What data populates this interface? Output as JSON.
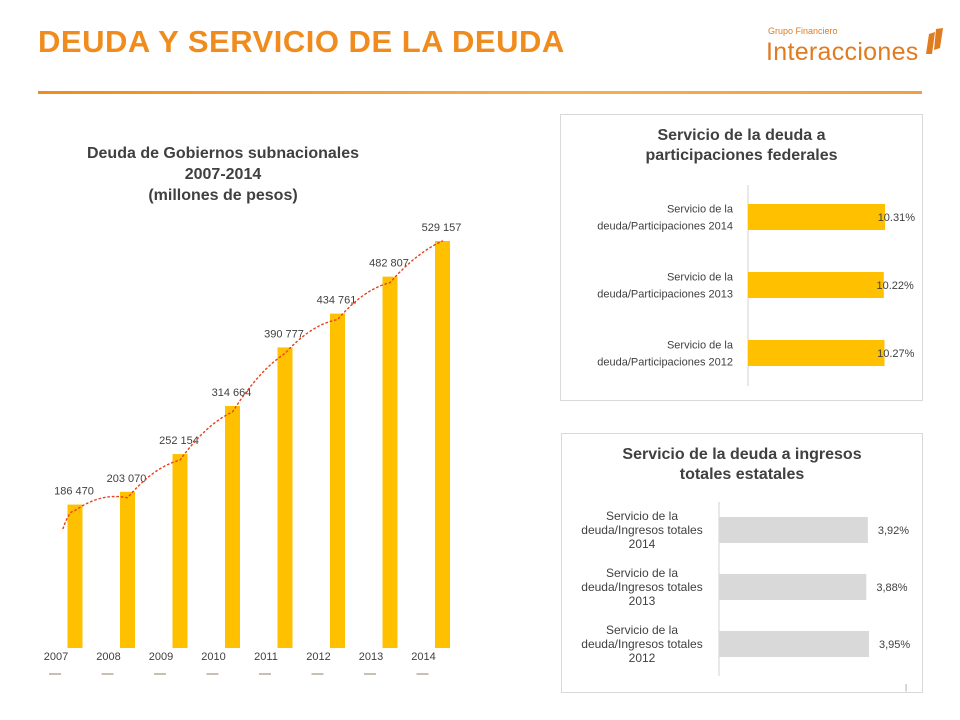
{
  "header": {
    "title": "DEUDA Y SERVICIO DE LA DEUDA",
    "logo_small": "Grupo Financiero",
    "logo_big": "Interacciones"
  },
  "chart_data": [
    {
      "type": "bar",
      "title": [
        "Deuda de Gobiernos subnacionales",
        "2007-2014",
        "(millones de pesos)"
      ],
      "categories": [
        "2007",
        "2008",
        "2009",
        "2010",
        "2011",
        "2012",
        "2013",
        "2014"
      ],
      "values": [
        186470,
        203070,
        252154,
        314664,
        390777,
        434761,
        482807,
        529157
      ],
      "value_labels": [
        "186 470",
        "203 070",
        "252 154",
        "314 664",
        "390 777",
        "434 761",
        "482 807",
        "529 157"
      ],
      "trendline": "polynomial (dotted red)",
      "color": "#ffc000",
      "trend_color": "#e8401c"
    },
    {
      "type": "bar",
      "orientation": "horizontal",
      "title": [
        "Servicio de la deuda a",
        "participaciones federales"
      ],
      "categories": [
        [
          "Servicio de la",
          "deuda/Participaciones 2014"
        ],
        [
          "Servicio de la",
          "deuda/Participaciones 2013"
        ],
        [
          "Servicio de la",
          "deuda/Participaciones 2012"
        ]
      ],
      "values": [
        10.31,
        10.22,
        10.27
      ],
      "value_labels": [
        "10.31%",
        "10.22%",
        "10.27%"
      ],
      "color": "#ffc000"
    },
    {
      "type": "bar",
      "orientation": "horizontal",
      "title": [
        "Servicio de la deuda a ingresos",
        "totales estatales"
      ],
      "categories": [
        [
          "Servicio de la",
          "deuda/Ingresos totales",
          "2014"
        ],
        [
          "Servicio de la",
          "deuda/Ingresos totales",
          "2013"
        ],
        [
          "Servicio de la",
          "deuda/Ingresos totales",
          "2012"
        ]
      ],
      "values": [
        3.92,
        3.88,
        3.95
      ],
      "value_labels": [
        "3,92%",
        "3,88%",
        "3,95%"
      ],
      "color": "#d9d9d9"
    }
  ]
}
